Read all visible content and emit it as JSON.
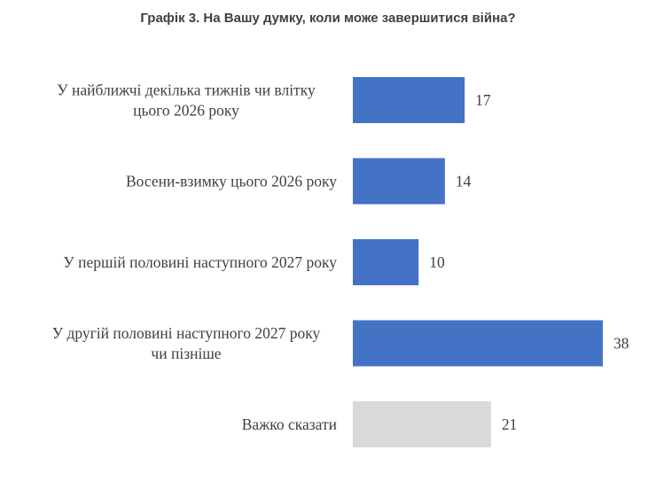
{
  "chart_data": {
    "type": "bar",
    "orientation": "horizontal",
    "title": "Графік 3. На Вашу думку, коли може завершитися війна?",
    "categories": [
      [
        "У найближчі декілька тижнів чи влітку",
        "цього 2026 року"
      ],
      [
        "Восени-взимку цього 2026 року"
      ],
      [
        "У першій половині наступного 2027 року"
      ],
      [
        "У другій половині наступного 2027 року",
        "чи пізніше"
      ],
      [
        "Важко сказати"
      ]
    ],
    "values": [
      17,
      14,
      10,
      38,
      21
    ],
    "value_labels": [
      "17",
      "14",
      "10",
      "38",
      "21"
    ],
    "bar_colors": [
      "#4472c4",
      "#4472c4",
      "#4472c4",
      "#4472c4",
      "#d9d9d9"
    ],
    "xlim": [
      0,
      40
    ],
    "grid": false,
    "legend": "none"
  }
}
